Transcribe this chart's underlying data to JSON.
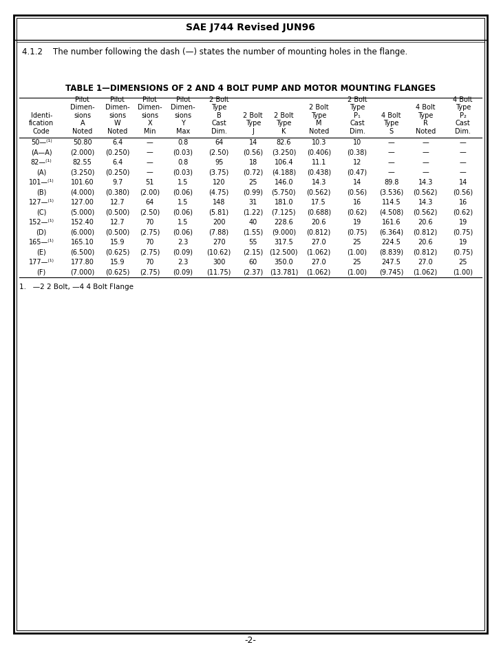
{
  "title": "SAE J744 Revised JUN96",
  "subtitle": "4.1.2    The number following the dash (—) states the number of mounting holes in the flange.",
  "table_title": "TABLE 1—DIMENSIONS OF 2 AND 4 BOLT PUMP AND MOTOR MOUNTING FLANGES",
  "footnote": "1.   —2 2 Bolt, —4 4 Bolt Flange",
  "page_num": "-2-",
  "col_header_texts": [
    [
      "Identi-",
      "fication",
      "Code"
    ],
    [
      "Pilot",
      "Dimen-",
      "sions",
      "A",
      "Noted"
    ],
    [
      "Pilot",
      "Dimen-",
      "sions",
      "W",
      "Noted"
    ],
    [
      "Pilot",
      "Dimen-",
      "sions",
      "X",
      "Min"
    ],
    [
      "Pilot",
      "Dimen-",
      "sions",
      "Y",
      "Max"
    ],
    [
      "2 Bolt",
      "Type",
      "B",
      "Cast",
      "Dim."
    ],
    [
      "2 Bolt",
      "Type",
      "J"
    ],
    [
      "2 Bolt",
      "Type",
      "K"
    ],
    [
      "2 Bolt",
      "Type",
      "M",
      "Noted"
    ],
    [
      "2 Bolt",
      "Type",
      "P₁",
      "Cast",
      "Dim."
    ],
    [
      "4 Bolt",
      "Type",
      "S"
    ],
    [
      "4 Bolt",
      "Type",
      "R",
      "Noted"
    ],
    [
      "4 Bolt",
      "Type",
      "P₂",
      "Cast",
      "Dim."
    ]
  ],
  "rows": [
    [
      "50—⁽¹⁾",
      "50.80",
      "6.4",
      "—",
      "0.8",
      "64",
      "14",
      "82.6",
      "10.3",
      "10",
      "—",
      "—",
      "—"
    ],
    [
      "(A—A)",
      "(2.000)",
      "(0.250)",
      "—",
      "(0.03)",
      "(2.50)",
      "(0.56)",
      "(3.250)",
      "(0.406)",
      "(0.38)",
      "—",
      "—",
      "—"
    ],
    [
      "82—⁽¹⁾",
      "82.55",
      "6.4",
      "—",
      "0.8",
      "95",
      "18",
      "106.4",
      "11.1",
      "12",
      "—",
      "—",
      "—"
    ],
    [
      "(A)",
      "(3.250)",
      "(0.250)",
      "—",
      "(0.03)",
      "(3.75)",
      "(0.72)",
      "(4.188)",
      "(0.438)",
      "(0.47)",
      "—",
      "—",
      "—"
    ],
    [
      "101—⁽¹⁾",
      "101.60",
      "9.7",
      "51",
      "1.5",
      "120",
      "25",
      "146.0",
      "14.3",
      "14",
      "89.8",
      "14.3",
      "14"
    ],
    [
      "(B)",
      "(4.000)",
      "(0.380)",
      "(2.00)",
      "(0.06)",
      "(4.75)",
      "(0.99)",
      "(5.750)",
      "(0.562)",
      "(0.56)",
      "(3.536)",
      "(0.562)",
      "(0.56)"
    ],
    [
      "127—⁽¹⁾",
      "127.00",
      "12.7",
      "64",
      "1.5",
      "148",
      "31",
      "181.0",
      "17.5",
      "16",
      "114.5",
      "14.3",
      "16"
    ],
    [
      "(C)",
      "(5.000)",
      "(0.500)",
      "(2.50)",
      "(0.06)",
      "(5.81)",
      "(1.22)",
      "(7.125)",
      "(0.688)",
      "(0.62)",
      "(4.508)",
      "(0.562)",
      "(0.62)"
    ],
    [
      "152—⁽¹⁾",
      "152.40",
      "12.7",
      "70",
      "1.5",
      "200",
      "40",
      "228.6",
      "20.6",
      "19",
      "161.6",
      "20.6",
      "19"
    ],
    [
      "(D)",
      "(6.000)",
      "(0.500)",
      "(2.75)",
      "(0.06)",
      "(7.88)",
      "(1.55)",
      "(9.000)",
      "(0.812)",
      "(0.75)",
      "(6.364)",
      "(0.812)",
      "(0.75)"
    ],
    [
      "165—⁽¹⁾",
      "165.10",
      "15.9",
      "70",
      "2.3",
      "270",
      "55",
      "317.5",
      "27.0",
      "25",
      "224.5",
      "20.6",
      "19"
    ],
    [
      "(E)",
      "(6.500)",
      "(0.625)",
      "(2.75)",
      "(0.09)",
      "(10.62)",
      "(2.15)",
      "(12.500)",
      "(1.062)",
      "(1.00)",
      "(8.839)",
      "(0.812)",
      "(0.75)"
    ],
    [
      "177—⁽¹⁾",
      "177.80",
      "15.9",
      "70",
      "2.3",
      "300",
      "60",
      "350.0",
      "27.0",
      "25",
      "247.5",
      "27.0",
      "25"
    ],
    [
      "(F)",
      "(7.000)",
      "(0.625)",
      "(2.75)",
      "(0.09)",
      "(11.75)",
      "(2.37)",
      "(13.781)",
      "(1.062)",
      "(1.00)",
      "(9.745)",
      "(1.062)",
      "(1.00)"
    ]
  ],
  "col_widths_rel": [
    52,
    44,
    38,
    38,
    40,
    44,
    36,
    36,
    46,
    44,
    36,
    44,
    44
  ]
}
